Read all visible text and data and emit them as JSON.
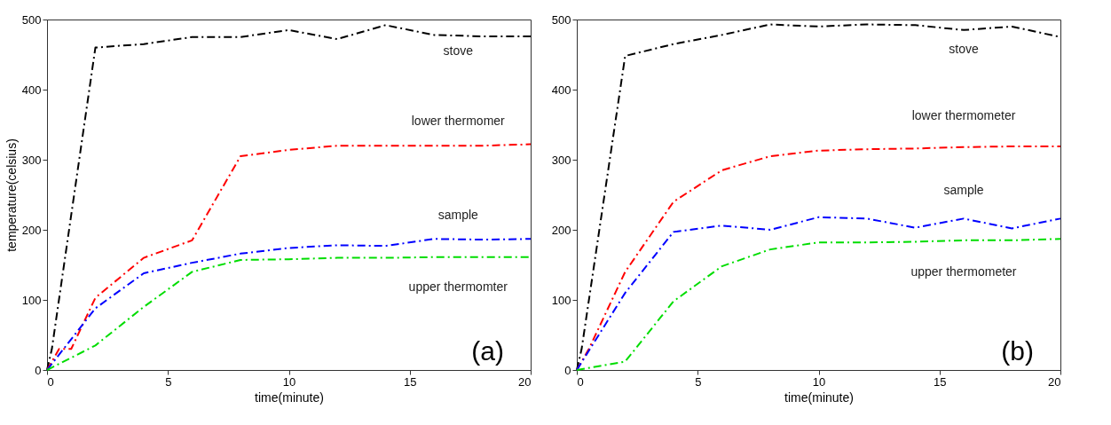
{
  "chart_data": [
    {
      "type": "line",
      "xlabel": "time(minute)",
      "ylabel": "temperature(celsius)",
      "annotations": [
        "(a)"
      ],
      "xlim": [
        0,
        20
      ],
      "xticks": [
        0,
        5,
        10,
        15,
        20
      ],
      "ylim": [
        0,
        500
      ],
      "yticks": [
        0,
        100,
        200,
        300,
        400,
        500
      ],
      "grid": false,
      "line_style": "dashed",
      "marker": "none",
      "series": [
        {
          "name": "stove",
          "color": "#000000",
          "x": [
            0,
            0.2,
            2,
            4,
            6,
            8,
            10,
            12,
            14,
            16,
            18,
            20
          ],
          "values": [
            0,
            30,
            460,
            465,
            475,
            475,
            485,
            472,
            492,
            478,
            476,
            476
          ]
        },
        {
          "name": "lower thermomer",
          "color": "#ff0000",
          "x": [
            0,
            0.5,
            1,
            2,
            4,
            6,
            8,
            10,
            12,
            14,
            16,
            18,
            20
          ],
          "values": [
            0,
            30,
            30,
            103,
            160,
            185,
            305,
            314,
            320,
            320,
            320,
            320,
            322
          ]
        },
        {
          "name": "sample",
          "color": "#0000ff",
          "x": [
            0,
            2,
            4,
            6,
            8,
            10,
            12,
            14,
            16,
            18,
            20
          ],
          "values": [
            0,
            88,
            138,
            153,
            166,
            174,
            178,
            177,
            187,
            186,
            187
          ]
        },
        {
          "name": "upper thermomter",
          "color": "#00dd00",
          "x": [
            0,
            2,
            4,
            6,
            8,
            10,
            12,
            14,
            16,
            18,
            20
          ],
          "values": [
            0,
            35,
            90,
            140,
            157,
            158,
            160,
            160,
            161,
            161,
            161
          ]
        }
      ]
    },
    {
      "type": "line",
      "xlabel": "time(minute)",
      "annotations": [
        "(b)"
      ],
      "xlim": [
        0,
        20
      ],
      "xticks": [
        0,
        5,
        10,
        15,
        20
      ],
      "ylim": [
        0,
        500
      ],
      "yticks": [
        0,
        100,
        200,
        300,
        400,
        500
      ],
      "grid": false,
      "line_style": "dashed",
      "marker": "none",
      "series": [
        {
          "name": "stove",
          "color": "#000000",
          "x": [
            0,
            0.2,
            2,
            4,
            6,
            8,
            10,
            12,
            14,
            16,
            18,
            20
          ],
          "values": [
            0,
            30,
            448,
            465,
            478,
            493,
            490,
            493,
            492,
            485,
            490,
            475
          ]
        },
        {
          "name": "lower thermometer",
          "color": "#ff0000",
          "x": [
            0,
            0.5,
            2,
            4,
            6,
            8,
            10,
            12,
            14,
            16,
            18,
            20
          ],
          "values": [
            0,
            30,
            140,
            240,
            285,
            305,
            313,
            315,
            316,
            318,
            319,
            319
          ]
        },
        {
          "name": "sample",
          "color": "#0000ff",
          "x": [
            0,
            2,
            4,
            6,
            8,
            10,
            12,
            14,
            16,
            18,
            20
          ],
          "values": [
            0,
            110,
            197,
            206,
            200,
            218,
            216,
            203,
            216,
            202,
            216
          ]
        },
        {
          "name": "upper thermometer",
          "color": "#00dd00",
          "x": [
            0,
            2,
            4,
            6,
            8,
            10,
            12,
            14,
            16,
            18,
            20
          ],
          "values": [
            0,
            12,
            98,
            148,
            172,
            182,
            182,
            183,
            185,
            185,
            187
          ]
        }
      ]
    }
  ]
}
